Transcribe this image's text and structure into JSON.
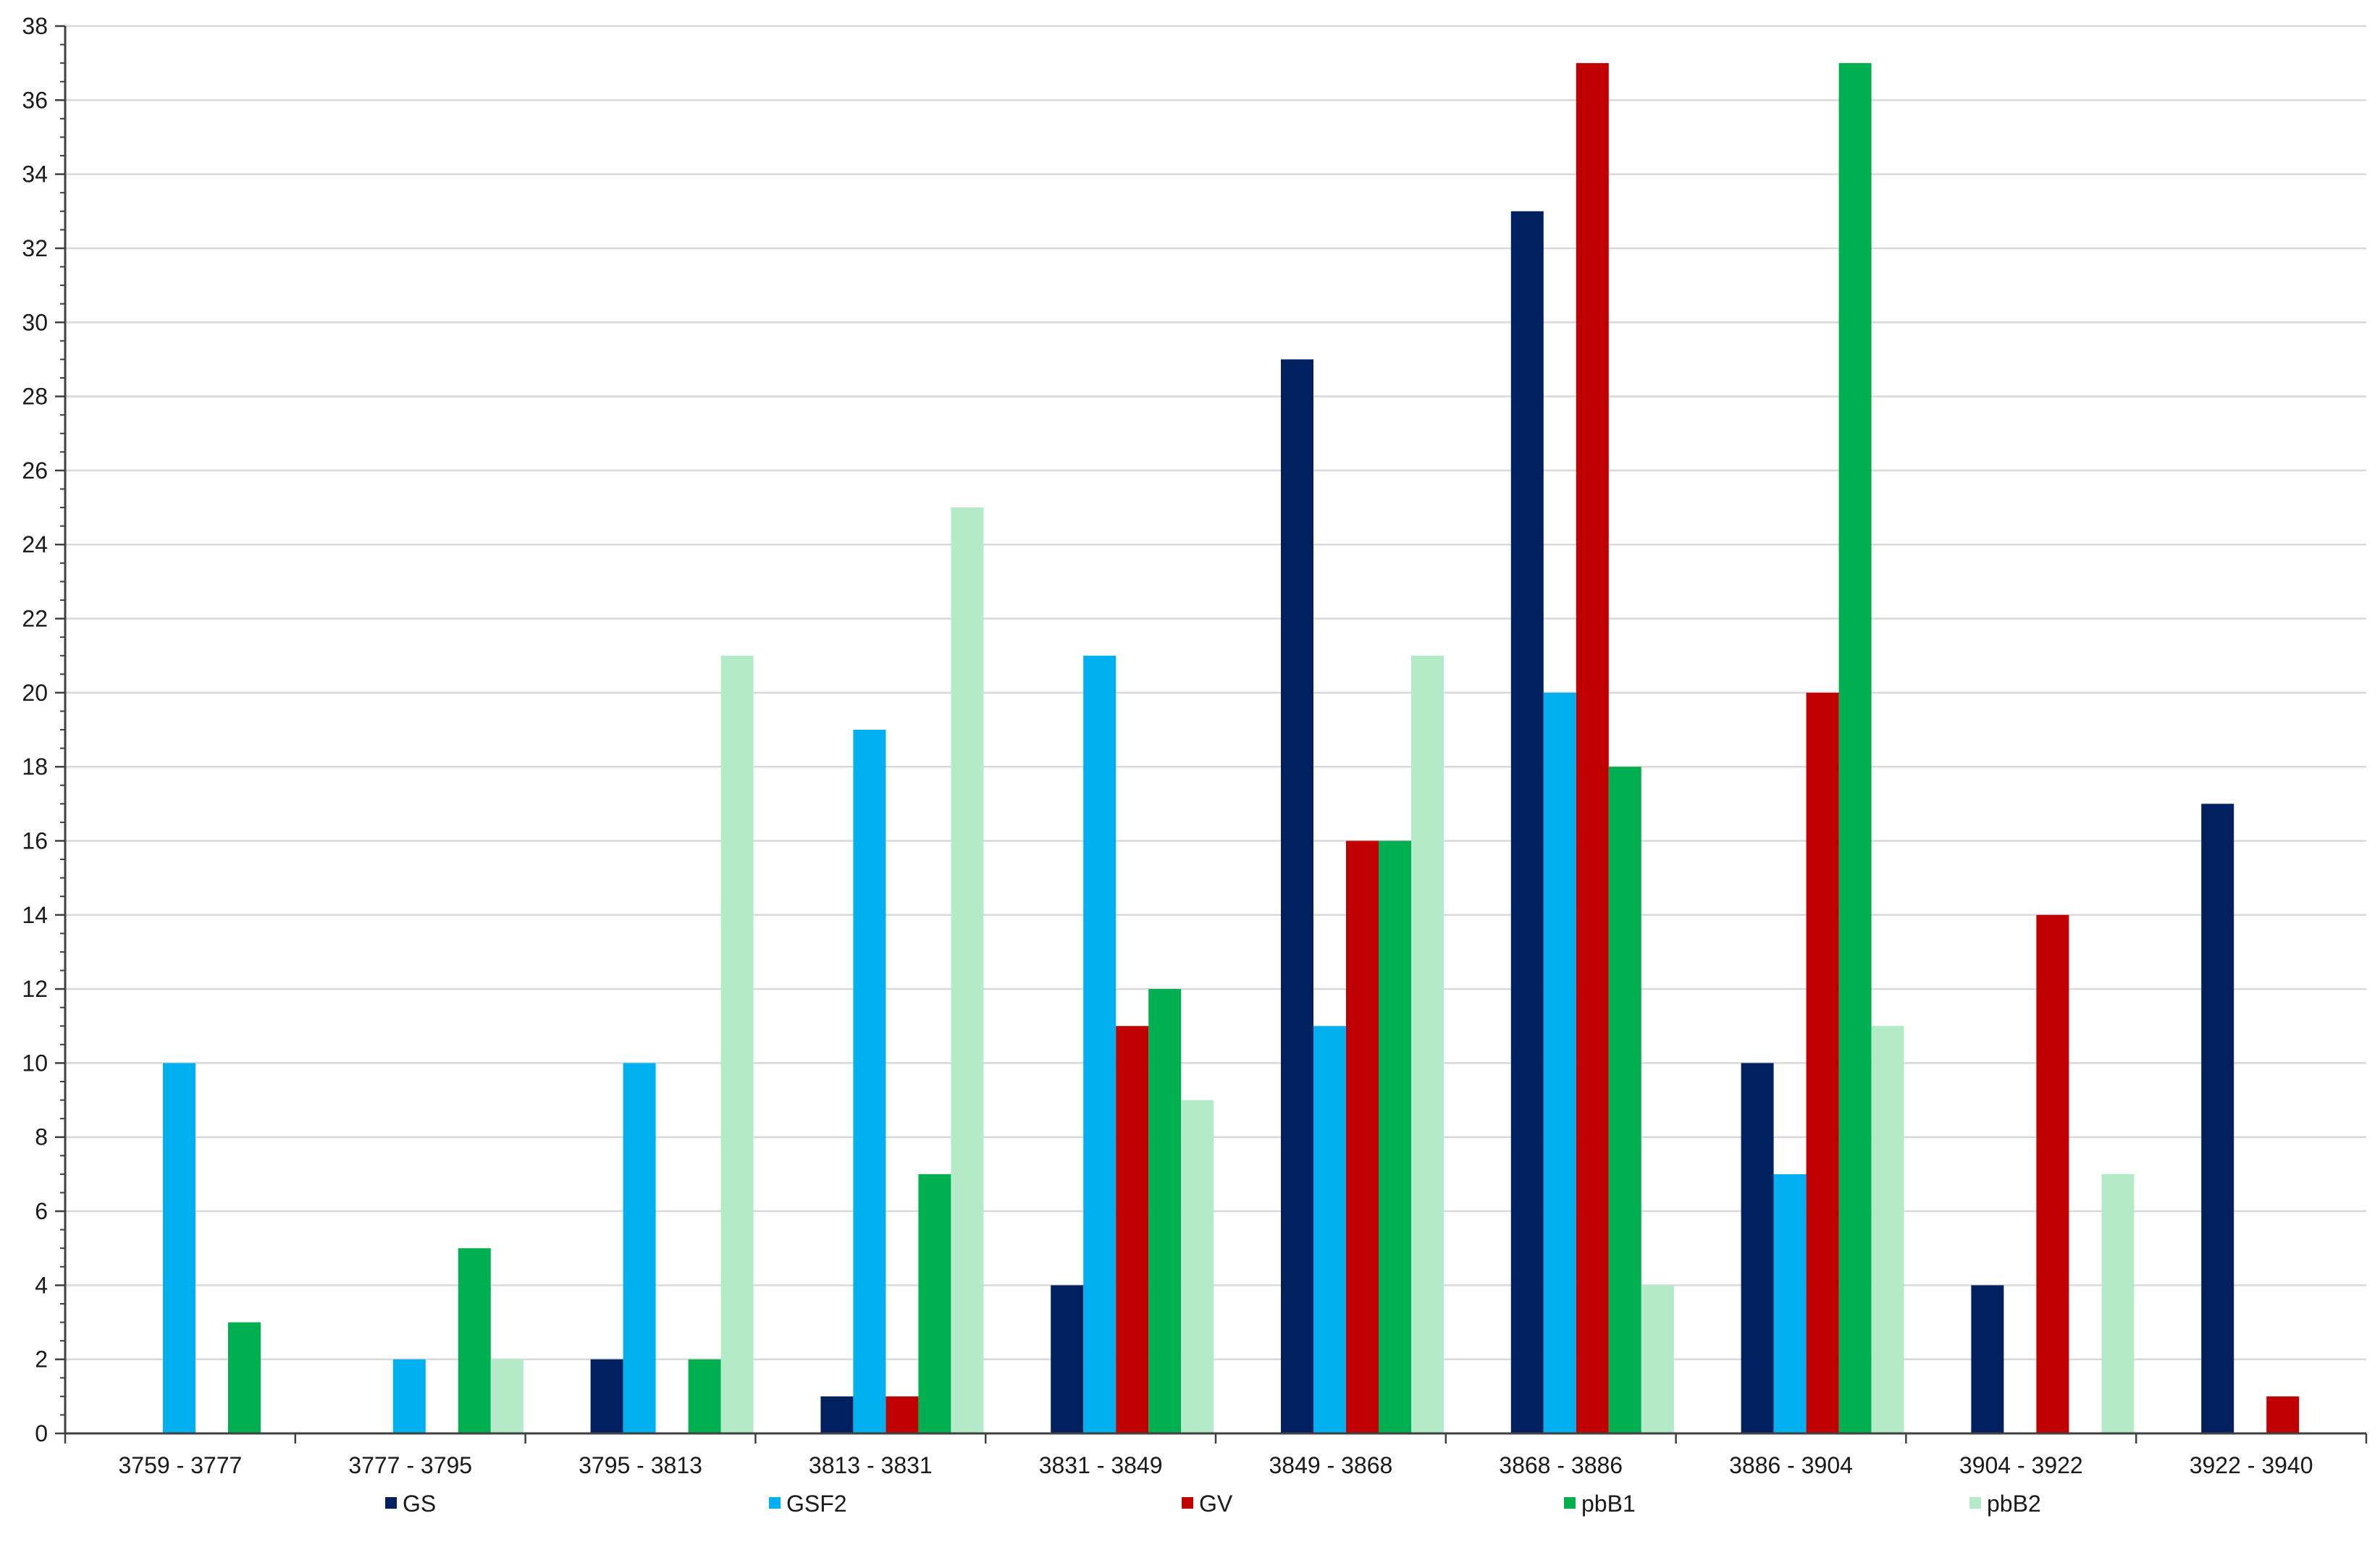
{
  "chart_data": {
    "type": "bar",
    "title": "",
    "xlabel": "",
    "ylabel": "",
    "ylim": [
      0,
      38
    ],
    "ytick_step": 2,
    "yticks": [
      "0",
      "2",
      "4",
      "6",
      "8",
      "10",
      "12",
      "14",
      "16",
      "18",
      "20",
      "22",
      "24",
      "26",
      "28",
      "30",
      "32",
      "34",
      "36",
      "38"
    ],
    "grid": true,
    "legend_position": "bottom",
    "categories": [
      "3759 - 3777",
      "3777 - 3795",
      "3795 - 3813",
      "3813 - 3831",
      "3831 - 3849",
      "3849 - 3868",
      "3868 - 3886",
      "3886 - 3904",
      "3904 - 3922",
      "3922 - 3940"
    ],
    "series": [
      {
        "name": "GS",
        "color": "#002060",
        "values": [
          0,
          0,
          2,
          1,
          4,
          29,
          33,
          10,
          4,
          17
        ]
      },
      {
        "name": "GSF2",
        "color": "#00B0F0",
        "values": [
          10,
          2,
          10,
          19,
          21,
          11,
          20,
          7,
          0,
          0
        ]
      },
      {
        "name": "GV",
        "color": "#C00000",
        "values": [
          0,
          0,
          0,
          1,
          11,
          16,
          37,
          20,
          14,
          1
        ]
      },
      {
        "name": "pbB1",
        "color": "#00B050",
        "values": [
          3,
          5,
          2,
          7,
          12,
          16,
          18,
          37,
          0,
          0
        ]
      },
      {
        "name": "pbB2",
        "color": "#B3EBC8",
        "values": [
          0,
          2,
          21,
          25,
          9,
          21,
          4,
          11,
          7,
          0
        ]
      }
    ]
  }
}
